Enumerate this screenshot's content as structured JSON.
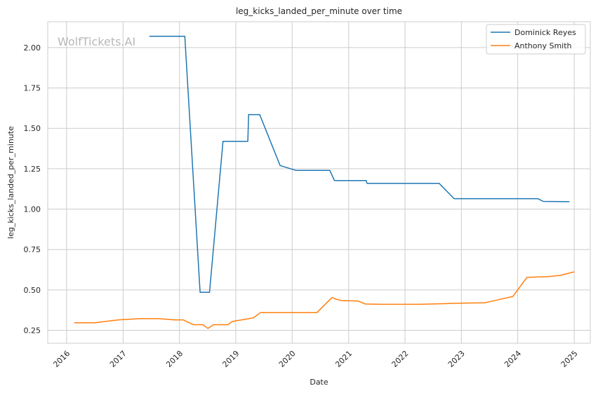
{
  "chart_data": {
    "type": "line",
    "title": "leg_kicks_landed_per_minute over time",
    "xlabel": "Date",
    "ylabel": "leg_kicks_landed_per_minute",
    "watermark": "WolfTickets.AI",
    "xlim": [
      "2015-09-01",
      "2025-04-15"
    ],
    "ylim": [
      0.17,
      2.16
    ],
    "x_ticks": [
      "2016",
      "2017",
      "2018",
      "2019",
      "2020",
      "2021",
      "2022",
      "2023",
      "2024",
      "2025"
    ],
    "y_ticks": [
      "0.25",
      "0.50",
      "0.75",
      "1.00",
      "1.25",
      "1.50",
      "1.75",
      "2.00"
    ],
    "grid": true,
    "legend_position": "top-right",
    "series": [
      {
        "name": "Dominick Reyes",
        "color": "#1f77b4",
        "points": [
          [
            "2017-06-20",
            2.07
          ],
          [
            "2018-02-05",
            2.07
          ],
          [
            "2018-05-15",
            0.485
          ],
          [
            "2018-07-15",
            0.485
          ],
          [
            "2018-10-10",
            1.42
          ],
          [
            "2019-03-20",
            1.42
          ],
          [
            "2019-03-25",
            1.585
          ],
          [
            "2019-06-05",
            1.585
          ],
          [
            "2019-10-15",
            1.27
          ],
          [
            "2020-01-25",
            1.24
          ],
          [
            "2020-09-01",
            1.24
          ],
          [
            "2020-10-01",
            1.177
          ],
          [
            "2021-04-25",
            1.177
          ],
          [
            "2021-04-30",
            1.16
          ],
          [
            "2022-08-10",
            1.16
          ],
          [
            "2022-11-15",
            1.065
          ],
          [
            "2024-05-10",
            1.065
          ],
          [
            "2024-06-15",
            1.048
          ],
          [
            "2024-12-01",
            1.046
          ]
        ]
      },
      {
        "name": "Anthony Smith",
        "color": "#ff7f0e",
        "points": [
          [
            "2016-02-20",
            0.297
          ],
          [
            "2016-07-01",
            0.297
          ],
          [
            "2016-12-01",
            0.315
          ],
          [
            "2017-04-15",
            0.322
          ],
          [
            "2017-08-20",
            0.322
          ],
          [
            "2017-12-01",
            0.315
          ],
          [
            "2018-01-25",
            0.315
          ],
          [
            "2018-04-01",
            0.285
          ],
          [
            "2018-06-01",
            0.285
          ],
          [
            "2018-07-05",
            0.262
          ],
          [
            "2018-08-10",
            0.285
          ],
          [
            "2018-11-10",
            0.285
          ],
          [
            "2018-12-10",
            0.305
          ],
          [
            "2019-04-25",
            0.327
          ],
          [
            "2019-06-10",
            0.36
          ],
          [
            "2020-05-10",
            0.36
          ],
          [
            "2020-06-10",
            0.36
          ],
          [
            "2020-09-15",
            0.453
          ],
          [
            "2020-10-10",
            0.443
          ],
          [
            "2020-11-20",
            0.433
          ],
          [
            "2021-03-01",
            0.432
          ],
          [
            "2021-04-20",
            0.413
          ],
          [
            "2021-08-01",
            0.411
          ],
          [
            "2022-04-10",
            0.411
          ],
          [
            "2023-01-01",
            0.418
          ],
          [
            "2023-06-01",
            0.42
          ],
          [
            "2023-09-01",
            0.44
          ],
          [
            "2023-12-01",
            0.46
          ],
          [
            "2024-03-01",
            0.578
          ],
          [
            "2024-05-01",
            0.58
          ],
          [
            "2024-07-10",
            0.582
          ],
          [
            "2024-10-01",
            0.59
          ],
          [
            "2025-01-01",
            0.612
          ]
        ]
      }
    ]
  }
}
